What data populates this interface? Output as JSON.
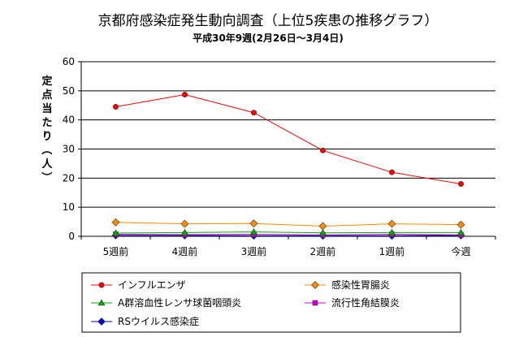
{
  "chart_data": {
    "type": "line",
    "title": "京都府感染症発生動向調査（上位5疾患の推移グラフ）",
    "subtitle": "平成30年9週(2月26日～3月4日)",
    "ylabel": "定点当たり（人）",
    "xlabel": "",
    "ylim": [
      0,
      60
    ],
    "yticks": [
      0,
      10,
      20,
      30,
      40,
      50,
      60
    ],
    "grid": true,
    "legend_position": "bottom",
    "categories": [
      "5週前",
      "4週前",
      "3週前",
      "2週前",
      "1週前",
      "今週"
    ],
    "series": [
      {
        "name": "インフルエンザ",
        "color": "#ff0000",
        "marker": "circle",
        "values": [
          44.5,
          48.7,
          42.5,
          29.5,
          22.0,
          18.0
        ]
      },
      {
        "name": "感染性胃腸炎",
        "color": "#ff8c00",
        "marker": "diamond",
        "values": [
          4.8,
          4.3,
          4.4,
          3.5,
          4.3,
          4.0
        ]
      },
      {
        "name": "A群溶血性レンサ球菌咽頭炎",
        "color": "#00aa00",
        "marker": "triangle",
        "values": [
          1.1,
          1.3,
          1.5,
          1.2,
          1.3,
          1.3
        ]
      },
      {
        "name": "流行性角結膜炎",
        "color": "#cc00cc",
        "marker": "square",
        "values": [
          0.7,
          0.6,
          0.7,
          0.5,
          0.7,
          0.5
        ]
      },
      {
        "name": "RSウイルス感染症",
        "color": "#0000cc",
        "marker": "diamond",
        "values": [
          0.3,
          0.3,
          0.2,
          0.2,
          0.2,
          0.3
        ]
      }
    ]
  }
}
